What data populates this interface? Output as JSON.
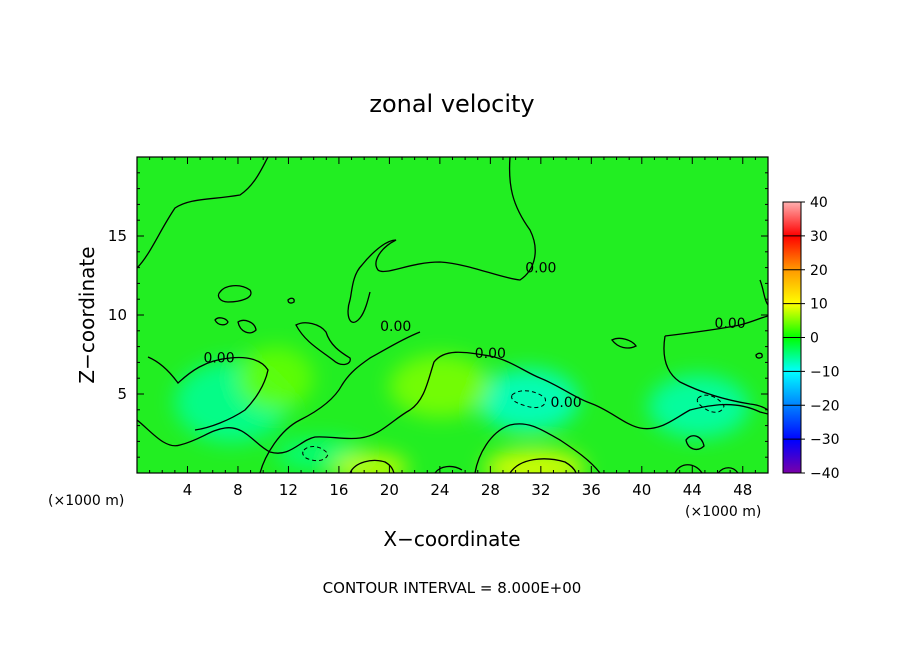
{
  "chart_data": {
    "type": "heatmap",
    "title": "zonal velocity",
    "xlabel": "X−coordinate",
    "ylabel": "Z−coordinate",
    "x_unit_label": "(×1000 m)",
    "xlim": [
      0,
      50
    ],
    "ylim": [
      0,
      20
    ],
    "x_ticks": [
      4,
      8,
      12,
      16,
      20,
      24,
      28,
      32,
      36,
      40,
      44,
      48
    ],
    "x_tick_labels": [
      "4",
      "8",
      "12",
      "16",
      "20",
      "24",
      "28",
      "32",
      "36",
      "40",
      "44",
      "48"
    ],
    "y_ticks": [
      5,
      10,
      15
    ],
    "y_tick_labels": [
      "5",
      "10",
      "15"
    ],
    "colorbar": {
      "min": -40,
      "max": 40,
      "ticks": [
        -40,
        -30,
        -20,
        -10,
        0,
        10,
        20,
        30,
        40
      ],
      "tick_labels": [
        "−40",
        "−30",
        "−20",
        "−10",
        "0",
        "10",
        "20",
        "30",
        "40"
      ],
      "colors": [
        "#7a00a8",
        "#0000ff",
        "#00ffff",
        "#00ff00",
        "#ffff00",
        "#ff8800",
        "#ff0000",
        "#ffaaaa"
      ]
    },
    "contour_interval_text": "CONTOUR INTERVAL = 8.000E+00",
    "contour_labels": [
      {
        "text": "0.00",
        "x": 6.5,
        "z": 7.3
      },
      {
        "text": "0.00",
        "x": 20.5,
        "z": 9.3
      },
      {
        "text": "0.00",
        "x": 28.0,
        "z": 7.6
      },
      {
        "text": "0.00",
        "x": 32.0,
        "z": 13.0
      },
      {
        "text": "0.00",
        "x": 34.0,
        "z": 4.5
      },
      {
        "text": "0.00",
        "x": 47.0,
        "z": 9.5
      }
    ],
    "field_features": [
      {
        "sign": "negative",
        "x": 7.5,
        "z": 4.5,
        "rx": 4.5,
        "rz": 2.6,
        "value": -6
      },
      {
        "sign": "negative",
        "x": 14.5,
        "z": 1.2,
        "rx": 3.5,
        "rz": 1.0,
        "value": -5
      },
      {
        "sign": "negative",
        "x": 31.0,
        "z": 4.6,
        "rx": 4.0,
        "rz": 2.0,
        "value": -8
      },
      {
        "sign": "negative",
        "x": 44.5,
        "z": 4.2,
        "rx": 4.0,
        "rz": 2.0,
        "value": -7
      },
      {
        "sign": "positive",
        "x": 18.5,
        "z": 0.3,
        "rx": 3.0,
        "rz": 1.0,
        "value": 8
      },
      {
        "sign": "positive",
        "x": 31.5,
        "z": 0.3,
        "rx": 4.0,
        "rz": 1.2,
        "value": 9
      },
      {
        "sign": "positive",
        "x": 24.0,
        "z": 5.5,
        "rx": 4.0,
        "rz": 2.0,
        "value": 5
      },
      {
        "sign": "positive",
        "x": 11.0,
        "z": 6.0,
        "rx": 3.0,
        "rz": 2.0,
        "value": 4
      }
    ]
  }
}
